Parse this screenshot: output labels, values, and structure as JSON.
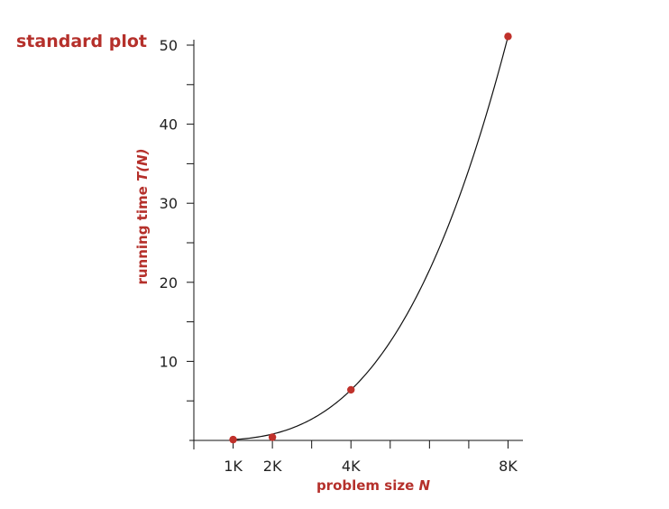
{
  "chart_data": {
    "type": "line",
    "title": "standard plot",
    "xlabel": "problem size",
    "xlabel_var": "N",
    "ylabel": "running time",
    "ylabel_var": "T(N)",
    "x_unit": "thousands",
    "xlim": [
      0,
      8.3
    ],
    "ylim": [
      0,
      50
    ],
    "x_ticks": [
      0,
      1,
      2,
      3,
      4,
      5,
      6,
      7,
      8
    ],
    "x_tick_labels": [
      {
        "value": 1,
        "label": "1K"
      },
      {
        "value": 2,
        "label": "2K"
      },
      {
        "value": 4,
        "label": "4K"
      },
      {
        "value": 8,
        "label": "8K"
      }
    ],
    "y_ticks": [
      5,
      10,
      15,
      20,
      25,
      30,
      35,
      40,
      45,
      50
    ],
    "y_tick_labels": [
      {
        "value": 10,
        "label": "10"
      },
      {
        "value": 20,
        "label": "20"
      },
      {
        "value": 30,
        "label": "30"
      },
      {
        "value": 40,
        "label": "40"
      },
      {
        "value": 50,
        "label": "50"
      }
    ],
    "series": [
      {
        "x": [
          1,
          2,
          4,
          8
        ],
        "y": [
          0.1,
          0.4,
          6.4,
          51.1
        ]
      }
    ],
    "curve_model": "cubic",
    "grid": false,
    "legend": "none",
    "colors": {
      "accent": "#b5302b",
      "point": "#c0312b",
      "axis": "#111111"
    }
  }
}
